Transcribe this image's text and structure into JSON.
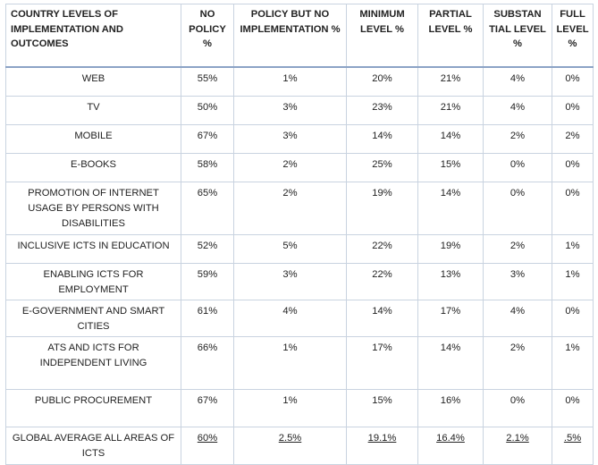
{
  "table": {
    "headers": [
      "COUNTRY LEVELS OF IMPLEMENTATION AND OUTCOMES",
      "NO POLICY %",
      "POLICY BUT NO IMPLEMENTATION %",
      "MINIMUM LEVEL %",
      "PARTIAL LEVEL %",
      "SUBSTAN TIAL LEVEL %",
      "FULL LEVEL %"
    ],
    "rows": [
      {
        "label": "WEB",
        "no_policy": "55%",
        "policy_no_impl": "1%",
        "minimum": "20%",
        "partial": "21%",
        "substantial": "4%",
        "full": "0%"
      },
      {
        "label": "TV",
        "no_policy": "50%",
        "policy_no_impl": "3%",
        "minimum": "23%",
        "partial": "21%",
        "substantial": "4%",
        "full": "0%"
      },
      {
        "label": "MOBILE",
        "no_policy": "67%",
        "policy_no_impl": "3%",
        "minimum": "14%",
        "partial": "14%",
        "substantial": "2%",
        "full": "2%"
      },
      {
        "label": "E-BOOKS",
        "no_policy": "58%",
        "policy_no_impl": "2%",
        "minimum": "25%",
        "partial": "15%",
        "substantial": "0%",
        "full": "0%"
      },
      {
        "label": "PROMOTION OF INTERNET USAGE BY PERSONS WITH DISABILITIES",
        "no_policy": "65%",
        "policy_no_impl": "2%",
        "minimum": "19%",
        "partial": "14%",
        "substantial": "0%",
        "full": "0%"
      },
      {
        "label": "INCLUSIVE ICTS IN EDUCATION",
        "no_policy": "52%",
        "policy_no_impl": "5%",
        "minimum": "22%",
        "partial": "19%",
        "substantial": "2%",
        "full": "1%"
      },
      {
        "label": "ENABLING ICTS FOR EMPLOYMENT",
        "no_policy": "59%",
        "policy_no_impl": "3%",
        "minimum": "22%",
        "partial": "13%",
        "substantial": "3%",
        "full": "1%"
      },
      {
        "label": "E-GOVERNMENT AND SMART CITIES",
        "no_policy": "61%",
        "policy_no_impl": "4%",
        "minimum": "14%",
        "partial": "17%",
        "substantial": "4%",
        "full": "0%"
      },
      {
        "label": "ATS AND ICTS FOR INDEPENDENT LIVING",
        "no_policy": "66%",
        "policy_no_impl": "1%",
        "minimum": "17%",
        "partial": "14%",
        "substantial": "2%",
        "full": "1%"
      },
      {
        "label": "PUBLIC PROCUREMENT",
        "no_policy": "67%",
        "policy_no_impl": "1%",
        "minimum": "15%",
        "partial": "16%",
        "substantial": "0%",
        "full": "0%"
      },
      {
        "label": "GLOBAL AVERAGE ALL AREAS OF ICTS",
        "no_policy": "60%",
        "policy_no_impl": "2.5%",
        "minimum": "19.1%",
        "partial": "16.4%",
        "substantial": "2.1%",
        "full": ".5%"
      }
    ]
  },
  "colors": {
    "grid": "#c9d3e0",
    "header_rule": "#8ca3c6",
    "text": "#222222"
  }
}
